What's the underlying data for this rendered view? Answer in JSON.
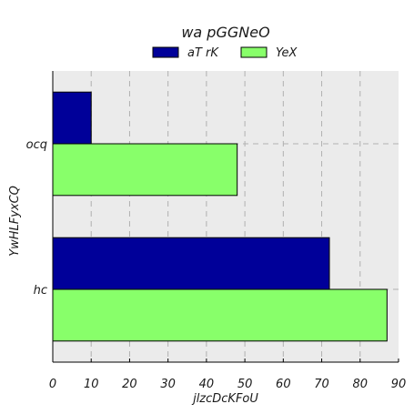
{
  "chart_data": {
    "type": "bar",
    "orientation": "horizontal",
    "title": "wa pGGNeO",
    "xlabel": "jlzcDcKFoU",
    "ylabel": "YwHLFyxCQ",
    "categories": [
      "hc",
      "ocq"
    ],
    "series": [
      {
        "name": "aT rK",
        "values": [
          72,
          10
        ],
        "color": "#000099"
      },
      {
        "name": "YeX",
        "values": [
          87,
          48
        ],
        "color": "#88ff6a"
      }
    ],
    "xlim": [
      0,
      90
    ],
    "xticks": [
      0,
      10,
      20,
      30,
      40,
      50,
      60,
      70,
      80,
      90
    ],
    "grid": true,
    "grid_style": "dashed",
    "legend_position": "top-center",
    "plot_background": "#ebebeb"
  }
}
